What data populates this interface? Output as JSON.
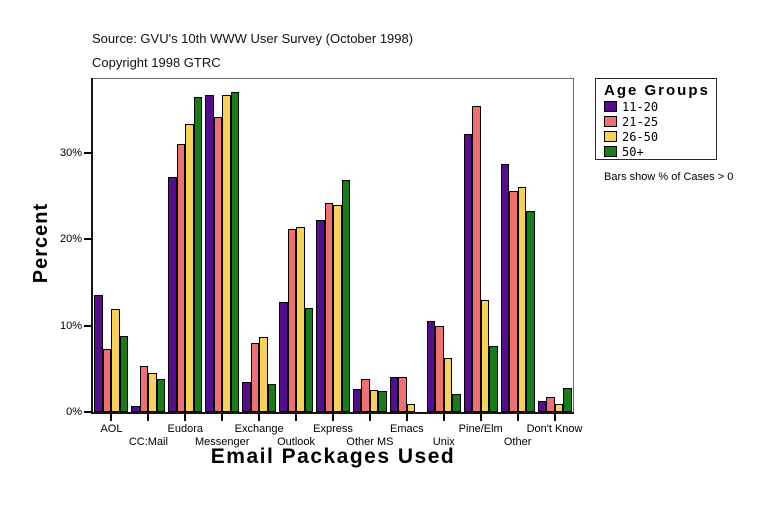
{
  "header": {
    "source": "Source: GVU's 10th WWW User Survey (October 1998)",
    "copyright": "Copyright 1998 GTRC"
  },
  "axes": {
    "y_title": "Percent",
    "x_title": "Email Packages Used"
  },
  "legend": {
    "title": "Age Groups",
    "note": "Bars show % of Cases > 0"
  },
  "chart_data": {
    "type": "bar",
    "title": "",
    "xlabel": "Email Packages Used",
    "ylabel": "Percent",
    "ylim": [
      0,
      38.7
    ],
    "yticks": [
      0,
      10,
      20,
      30
    ],
    "ytick_suffix": "%",
    "grid": false,
    "legend_position": "right",
    "note": "Bars show % of Cases > 0 (zero-value bars are not drawn)",
    "categories": [
      "AOL",
      "CC:Mail",
      "Eudora",
      "Messenger",
      "Exchange",
      "Outlook",
      "Express",
      "Other MS",
      "Emacs",
      "Unix",
      "Pine/Elm",
      "Other",
      "Don't Know"
    ],
    "series": [
      {
        "name": "11-20",
        "color": "#540D8F",
        "values": [
          13.5,
          0.7,
          27.2,
          36.7,
          3.5,
          12.7,
          22.2,
          2.7,
          4.1,
          10.6,
          32.2,
          28.7,
          1.3
        ]
      },
      {
        "name": "21-25",
        "color": "#EE7070",
        "values": [
          7.3,
          5.3,
          31.1,
          34.2,
          8.0,
          21.2,
          24.2,
          3.8,
          4.0,
          10.0,
          35.4,
          25.6,
          1.7
        ]
      },
      {
        "name": "26-50",
        "color": "#F8D158",
        "values": [
          11.9,
          4.5,
          33.4,
          36.7,
          8.7,
          21.4,
          24.0,
          2.6,
          0.9,
          6.2,
          13.0,
          26.1,
          0.9
        ]
      },
      {
        "name": "50+",
        "color": "#177D17",
        "values": [
          8.8,
          3.8,
          36.5,
          37.1,
          3.3,
          12.1,
          26.9,
          2.4,
          0,
          2.1,
          7.6,
          23.3,
          2.8
        ]
      }
    ]
  }
}
